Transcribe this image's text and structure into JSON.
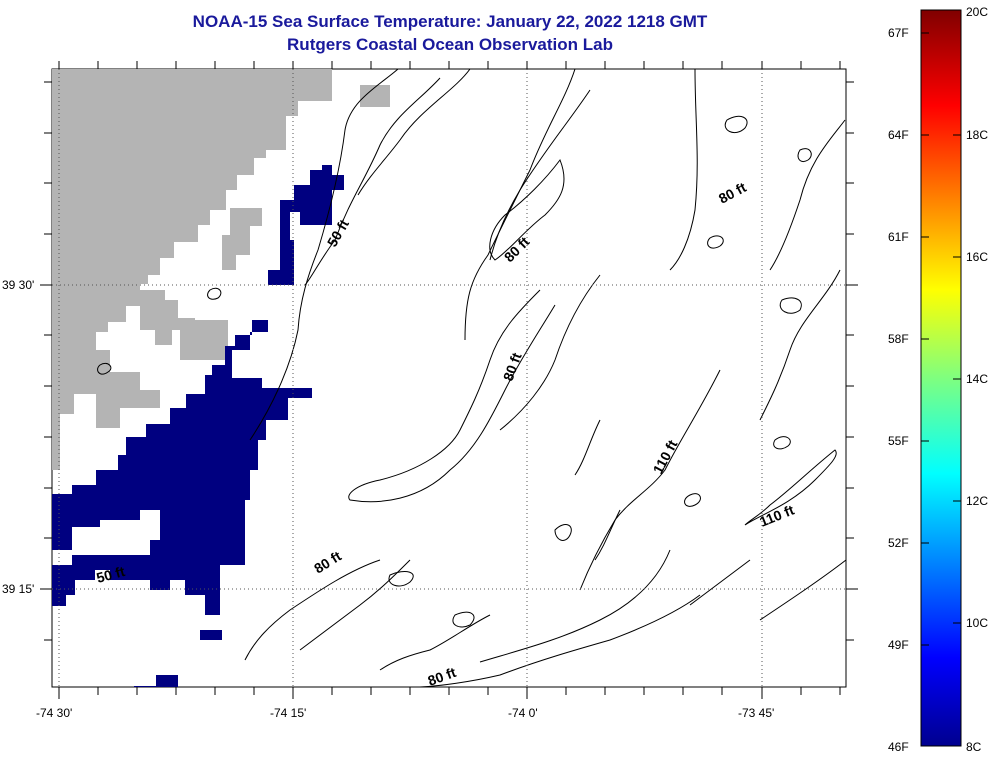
{
  "title": {
    "line1": "NOAA-15 Sea Surface Temperature:  January 22, 2022 1218 GMT",
    "line2": "Rutgers Coastal Ocean Observation Lab"
  },
  "map": {
    "latitude_labels": [
      "39 30'",
      "39 15'"
    ],
    "longitude_labels": [
      "-74 30'",
      "-74 15'",
      "-74 0'",
      "-73 45'"
    ],
    "contour_labels": [
      "50 ft",
      "80 ft",
      "80 ft",
      "80 ft",
      "80 ft",
      "80 ft",
      "110 ft",
      "110 ft",
      "50 ft"
    ],
    "colors": {
      "land": "#b4b4b4",
      "cold_water": "#000080",
      "contour": "#000000",
      "grid": "#555555"
    }
  },
  "colorbar": {
    "fahrenheit_labels": [
      "67F",
      "64F",
      "61F",
      "58F",
      "55F",
      "52F",
      "49F",
      "46F"
    ],
    "celsius_labels": [
      "20C",
      "18C",
      "16C",
      "14C",
      "12C",
      "10C",
      "8C"
    ],
    "colormap": "jet"
  }
}
